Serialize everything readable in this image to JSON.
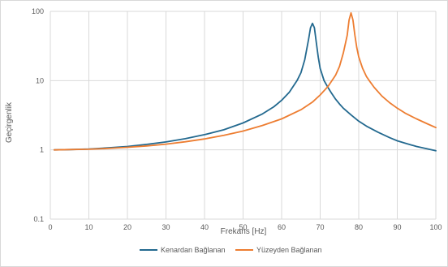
{
  "chart_data": {
    "type": "line",
    "xlabel": "Frekans [Hz]",
    "ylabel": "Geçirgenlik",
    "xlim": [
      0,
      100
    ],
    "ylim": [
      0.1,
      100
    ],
    "yscale": "log",
    "grid": true,
    "legend_position": "bottom",
    "x_ticks": [
      "0",
      "10",
      "20",
      "30",
      "40",
      "50",
      "60",
      "70",
      "80",
      "90",
      "100"
    ],
    "y_ticks": [
      "0.1",
      "1",
      "10",
      "100"
    ],
    "series": [
      {
        "name": "Kenardan Bağlanan",
        "color": "#23698f",
        "x": [
          1,
          5,
          10,
          15,
          20,
          25,
          30,
          35,
          40,
          45,
          50,
          55,
          58,
          60,
          62,
          64,
          65,
          66,
          67,
          67.5,
          68,
          68.5,
          69,
          69.5,
          70,
          71,
          72,
          73,
          74,
          75,
          76,
          78,
          80,
          82,
          85,
          88,
          90,
          92,
          95,
          98,
          100
        ],
        "y": [
          1.0,
          1.01,
          1.03,
          1.07,
          1.12,
          1.2,
          1.3,
          1.45,
          1.66,
          1.95,
          2.45,
          3.3,
          4.2,
          5.2,
          6.8,
          10.0,
          13.0,
          20.0,
          40.0,
          58.0,
          67.0,
          58.0,
          35.0,
          22.0,
          15.0,
          10.0,
          8.0,
          6.5,
          5.4,
          4.6,
          4.0,
          3.2,
          2.6,
          2.2,
          1.8,
          1.5,
          1.35,
          1.25,
          1.12,
          1.03,
          0.97
        ]
      },
      {
        "name": "Yüzeyden Bağlanan",
        "color": "#ed7d31",
        "x": [
          1,
          5,
          10,
          15,
          20,
          25,
          30,
          35,
          40,
          45,
          50,
          55,
          60,
          65,
          68,
          70,
          72,
          74,
          75,
          76,
          77,
          77.5,
          78,
          78.5,
          79,
          79.5,
          80,
          81,
          82,
          83,
          84,
          86,
          88,
          90,
          92,
          95,
          98,
          100
        ],
        "y": [
          1.0,
          1.01,
          1.02,
          1.05,
          1.09,
          1.14,
          1.21,
          1.31,
          1.44,
          1.62,
          1.87,
          2.25,
          2.8,
          3.8,
          4.9,
          6.2,
          8.2,
          12.0,
          16.0,
          25.0,
          45.0,
          75.0,
          95.0,
          75.0,
          45.0,
          30.0,
          22.0,
          15.0,
          11.5,
          9.5,
          8.0,
          6.0,
          4.8,
          4.0,
          3.4,
          2.8,
          2.35,
          2.1
        ]
      }
    ]
  }
}
